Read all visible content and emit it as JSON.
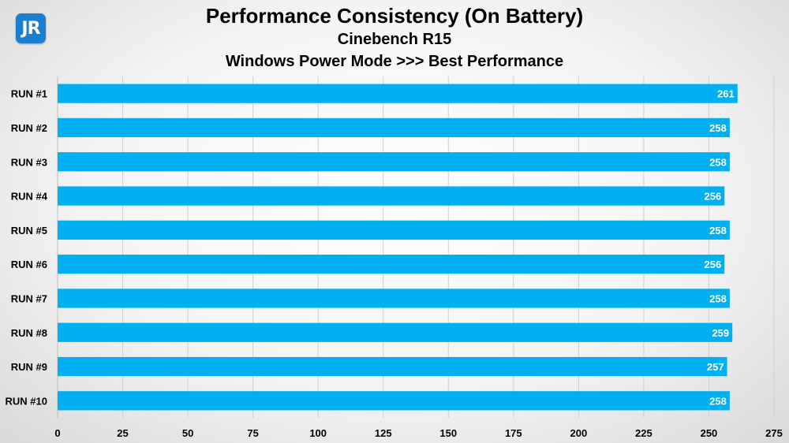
{
  "logo": {
    "text": "JR"
  },
  "chart_data": {
    "type": "bar",
    "orientation": "horizontal",
    "title": "Performance Consistency (On Battery)",
    "subtitle": "Cinebench R15",
    "subtitle2": "Windows Power Mode >>> Best Performance",
    "categories": [
      "RUN #1",
      "RUN #2",
      "RUN #3",
      "RUN #4",
      "RUN #5",
      "RUN #6",
      "RUN #7",
      "RUN #8",
      "RUN #9",
      "RUN #10"
    ],
    "values": [
      261,
      258,
      258,
      256,
      258,
      256,
      258,
      259,
      257,
      258
    ],
    "xlim": [
      0,
      275
    ],
    "xticks": [
      0,
      25,
      50,
      75,
      100,
      125,
      150,
      175,
      200,
      225,
      250,
      275
    ],
    "grid": true,
    "bar_color": "#00b0f0",
    "grid_color": "#cfcfcf"
  }
}
